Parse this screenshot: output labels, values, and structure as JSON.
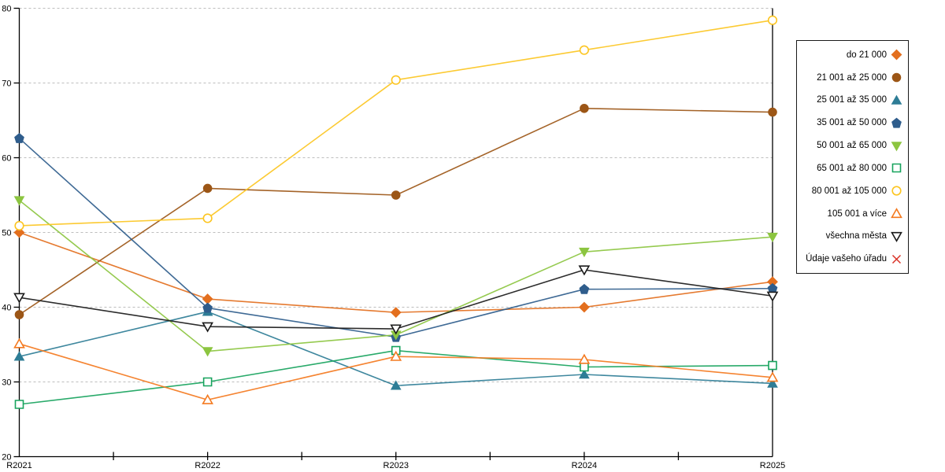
{
  "chart": {
    "background_color": "#ffffff",
    "axis_color": "#000000",
    "gridline_color": "#bdbdbd",
    "legend_border_color": "#1a1a1a"
  },
  "chart_data": {
    "type": "line",
    "x": [
      "R2021",
      "R2022",
      "R2023",
      "R2024",
      "R2025"
    ],
    "ylim": [
      20,
      80
    ],
    "ytick_step": 10,
    "yticks": [
      20,
      30,
      40,
      50,
      60,
      70,
      80
    ],
    "grid": "horizontal-dashed",
    "legend_position": "right",
    "title": "",
    "xlabel": "",
    "ylabel": "",
    "series": [
      {
        "name": "do 21 000",
        "marker": "diamond",
        "fill": "filled",
        "color": "#E36F1E",
        "values": [
          50.0,
          41.1,
          39.3,
          40.0,
          43.4
        ]
      },
      {
        "name": "21 001 až 25 000",
        "marker": "circle",
        "fill": "filled",
        "color": "#9C5616",
        "values": [
          39.0,
          55.9,
          55.0,
          66.6,
          66.1
        ]
      },
      {
        "name": "25 001 až 35 000",
        "marker": "triangle-up",
        "fill": "filled",
        "color": "#2E7D96",
        "values": [
          33.4,
          39.4,
          29.5,
          31.0,
          29.8
        ]
      },
      {
        "name": "35 001 až 50 000",
        "marker": "pentagon",
        "fill": "filled",
        "color": "#2F5D8C",
        "values": [
          62.6,
          39.9,
          36.0,
          42.4,
          42.5
        ]
      },
      {
        "name": "50 001 až 65 000",
        "marker": "triangle-down",
        "fill": "filled",
        "color": "#8CC540",
        "values": [
          54.3,
          34.1,
          36.3,
          47.4,
          49.4
        ]
      },
      {
        "name": "65 001 až 80 000",
        "marker": "square",
        "fill": "open",
        "color": "#17A35D",
        "values": [
          27.0,
          30.0,
          34.2,
          32.0,
          32.2
        ]
      },
      {
        "name": "80 001 až 105 000",
        "marker": "circle",
        "fill": "open",
        "color": "#FCC521",
        "values": [
          50.9,
          51.9,
          70.4,
          74.4,
          78.4
        ]
      },
      {
        "name": "105 001 a více",
        "marker": "triangle-up",
        "fill": "open",
        "color": "#F47A20",
        "values": [
          35.1,
          27.6,
          33.4,
          33.0,
          30.6
        ]
      },
      {
        "name": "všechna města",
        "marker": "triangle-down",
        "fill": "open",
        "color": "#1A1A1A",
        "values": [
          41.3,
          37.4,
          37.1,
          45.0,
          41.5
        ]
      },
      {
        "name": "Údaje vašeho úřadu",
        "marker": "x",
        "fill": "open",
        "color": "#D93025",
        "values": [
          null,
          null,
          null,
          null,
          null
        ]
      }
    ]
  }
}
